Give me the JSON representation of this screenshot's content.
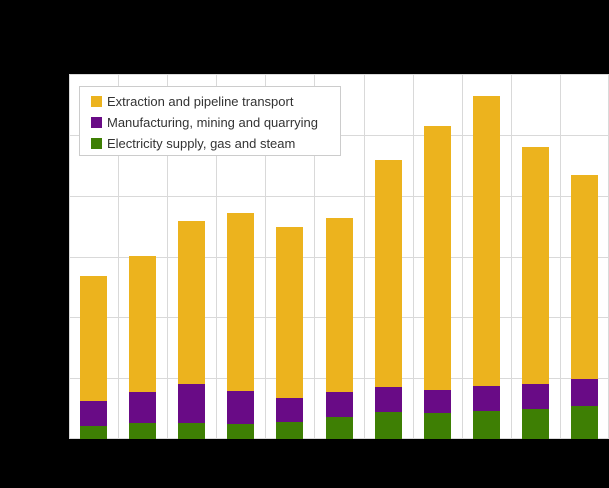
{
  "page": {
    "background": "#000000",
    "plot_background": "#ffffff",
    "gridline_color": "#d9d9d9",
    "legend_border_color": "#cccccc",
    "legend_text_color": "#333333"
  },
  "chart_data": {
    "type": "bar",
    "stacked": true,
    "title": "",
    "xlabel": "",
    "ylabel": "",
    "categories": [
      "",
      "",
      "",
      "",
      "",
      "",
      "",
      "",
      "",
      "",
      ""
    ],
    "series": [
      {
        "name": "Extraction and pipeline transport",
        "color": "#ecb31e",
        "values": [
          20.6,
          22.4,
          26.7,
          29.2,
          28.0,
          28.7,
          37.4,
          43.3,
          47.6,
          38.9,
          33.5
        ]
      },
      {
        "name": "Manufacturing, mining and quarrying",
        "color": "#690b86",
        "values": [
          4.1,
          5.1,
          6.4,
          5.4,
          4.0,
          4.0,
          4.1,
          3.9,
          4.2,
          4.1,
          4.5
        ]
      },
      {
        "name": "Electricity supply, gas and steam",
        "color": "#3e7f04",
        "values": [
          2.1,
          2.6,
          2.7,
          2.5,
          2.8,
          3.7,
          4.4,
          4.2,
          4.6,
          5.0,
          5.4
        ]
      }
    ],
    "stack_order_bottom_to_top": [
      "Electricity supply, gas and steam",
      "Manufacturing, mining and quarrying",
      "Extraction and pipeline transport"
    ],
    "ylim": [
      0,
      60
    ],
    "gridline_step": 10,
    "grid": true,
    "tick_labels_visible": false,
    "legend_position": "top-left-inside"
  }
}
